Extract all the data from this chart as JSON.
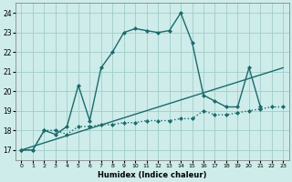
{
  "xlabel": "Humidex (Indice chaleur)",
  "xlim": [
    -0.5,
    23.5
  ],
  "ylim": [
    16.5,
    24.5
  ],
  "yticks": [
    17,
    18,
    19,
    20,
    21,
    22,
    23,
    24
  ],
  "xticks": [
    0,
    1,
    2,
    3,
    4,
    5,
    6,
    7,
    8,
    9,
    10,
    11,
    12,
    13,
    14,
    15,
    16,
    17,
    18,
    19,
    20,
    21,
    22,
    23
  ],
  "bg_color": "#ceecea",
  "grid_color": "#a0ceca",
  "line_color": "#1a6b6b",
  "series": [
    {
      "x": [
        0,
        1,
        2,
        3,
        4,
        5,
        6,
        7,
        8,
        9,
        10,
        11,
        12,
        13,
        14,
        15,
        16,
        17,
        18,
        19,
        20,
        21
      ],
      "y": [
        17,
        17,
        18,
        17.8,
        18.2,
        20.3,
        18.5,
        21.2,
        22.0,
        23.0,
        23.2,
        23.1,
        23.0,
        23.1,
        24.0,
        22.5,
        19.8,
        19.5,
        19.2,
        19.2,
        21.2,
        19.2
      ],
      "marker": "D",
      "markersize": 2.0,
      "linewidth": 1.0,
      "linestyle": "solid"
    },
    {
      "x": [
        0,
        1,
        2,
        3,
        4,
        5,
        6,
        7,
        8,
        9,
        10,
        11,
        12,
        13,
        14,
        15,
        16,
        17,
        18,
        19,
        20,
        21,
        22,
        23
      ],
      "y": [
        17,
        17,
        18,
        18,
        17.8,
        18.2,
        18.2,
        18.3,
        18.3,
        18.4,
        18.4,
        18.5,
        18.5,
        18.5,
        18.6,
        18.6,
        19.0,
        18.8,
        18.8,
        18.9,
        19.0,
        19.1,
        19.2,
        19.2
      ],
      "marker": "D",
      "markersize": 2.0,
      "linewidth": 1.0,
      "linestyle": "dotted"
    },
    {
      "x": [
        0,
        23
      ],
      "y": [
        17.0,
        21.2
      ],
      "marker": null,
      "markersize": 0,
      "linewidth": 1.0,
      "linestyle": "solid"
    }
  ]
}
